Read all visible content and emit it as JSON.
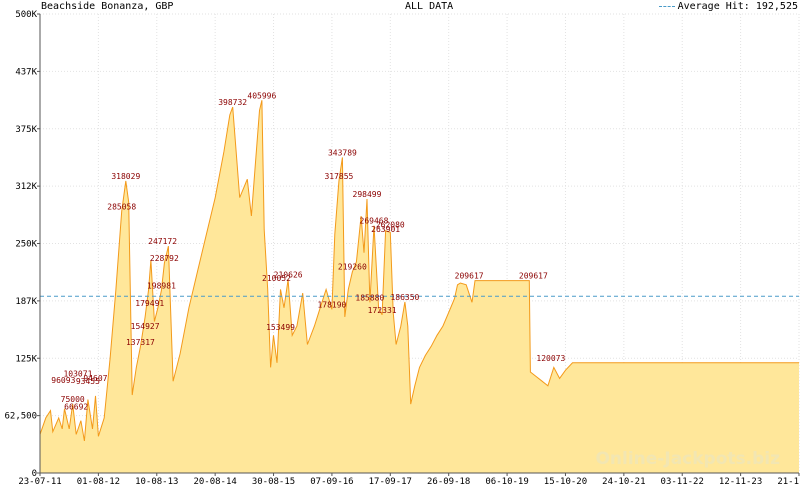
{
  "chart_data": {
    "type": "area",
    "title": "Beachside Bonanza, GBP",
    "subtitle": "ALL DATA",
    "legend": {
      "label": "Average Hit: 192,525",
      "position": "top-right"
    },
    "average": 192525,
    "ylim": [
      0,
      500000
    ],
    "y_ticks": [
      {
        "value": 0,
        "label": "0"
      },
      {
        "value": 62500,
        "label": "62,500"
      },
      {
        "value": 125000,
        "label": "125K"
      },
      {
        "value": 187500,
        "label": "187K"
      },
      {
        "value": 250000,
        "label": "250K"
      },
      {
        "value": 312500,
        "label": "312K"
      },
      {
        "value": 375000,
        "label": "375K"
      },
      {
        "value": 437500,
        "label": "437K"
      },
      {
        "value": 500000,
        "label": "500K"
      }
    ],
    "x_ticks": [
      "23-07-11",
      "01-08-12",
      "10-08-13",
      "20-08-14",
      "30-08-15",
      "07-09-16",
      "17-09-17",
      "26-09-18",
      "06-10-19",
      "15-10-20",
      "24-10-21",
      "03-11-22",
      "12-11-23",
      "21-11-24"
    ],
    "xlim": [
      0,
      13
    ],
    "grid": true,
    "watermark": "Online-Jackpots.biz",
    "series": [
      {
        "points": [
          [
            0.0,
            42000
          ],
          [
            0.1,
            60000
          ],
          [
            0.18,
            68000
          ],
          [
            0.22,
            45000
          ],
          [
            0.32,
            60000
          ],
          [
            0.38,
            48000
          ],
          [
            0.42,
            70000
          ],
          [
            0.5,
            48000
          ],
          [
            0.56,
            75000
          ],
          [
            0.62,
            42000
          ],
          [
            0.7,
            57000
          ],
          [
            0.76,
            35000
          ],
          [
            0.82,
            80000
          ],
          [
            0.9,
            48000
          ],
          [
            0.95,
            84000
          ],
          [
            1.0,
            40000
          ],
          [
            1.1,
            60000
          ],
          [
            1.2,
            125000
          ],
          [
            1.3,
            200000
          ],
          [
            1.4,
            285058
          ],
          [
            1.47,
            318029
          ],
          [
            1.52,
            295000
          ],
          [
            1.58,
            85000
          ],
          [
            1.65,
            115000
          ],
          [
            1.72,
            137317
          ],
          [
            1.8,
            170000
          ],
          [
            1.86,
            200000
          ],
          [
            1.9,
            232000
          ],
          [
            1.96,
            165000
          ],
          [
            2.02,
            180000
          ],
          [
            2.08,
            198981
          ],
          [
            2.13,
            228792
          ],
          [
            2.2,
            247172
          ],
          [
            2.28,
            100000
          ],
          [
            2.4,
            130000
          ],
          [
            2.55,
            180000
          ],
          [
            2.7,
            220000
          ],
          [
            2.85,
            260000
          ],
          [
            3.0,
            300000
          ],
          [
            3.15,
            350000
          ],
          [
            3.25,
            390000
          ],
          [
            3.3,
            398732
          ],
          [
            3.42,
            300000
          ],
          [
            3.55,
            320000
          ],
          [
            3.62,
            280000
          ],
          [
            3.68,
            330000
          ],
          [
            3.76,
            395000
          ],
          [
            3.8,
            405996
          ],
          [
            3.84,
            265000
          ],
          [
            3.9,
            200000
          ],
          [
            3.95,
            115000
          ],
          [
            4.0,
            150000
          ],
          [
            4.06,
            120000
          ],
          [
            4.12,
            200000
          ],
          [
            4.18,
            180000
          ],
          [
            4.25,
            210626
          ],
          [
            4.32,
            150000
          ],
          [
            4.4,
            160000
          ],
          [
            4.5,
            196000
          ],
          [
            4.58,
            140000
          ],
          [
            4.7,
            160000
          ],
          [
            4.8,
            180000
          ],
          [
            4.9,
            200000
          ],
          [
            5.0,
            178190
          ],
          [
            5.05,
            260000
          ],
          [
            5.12,
            317855
          ],
          [
            5.18,
            343789
          ],
          [
            5.22,
            170000
          ],
          [
            5.28,
            200000
          ],
          [
            5.35,
            219260
          ],
          [
            5.42,
            230000
          ],
          [
            5.5,
            280000
          ],
          [
            5.55,
            240000
          ],
          [
            5.6,
            298499
          ],
          [
            5.65,
            185880
          ],
          [
            5.72,
            269468
          ],
          [
            5.8,
            180000
          ],
          [
            5.86,
            172331
          ],
          [
            5.92,
            263901
          ],
          [
            6.0,
            262080
          ],
          [
            6.05,
            175000
          ],
          [
            6.1,
            140000
          ],
          [
            6.18,
            160000
          ],
          [
            6.25,
            186350
          ],
          [
            6.3,
            160000
          ],
          [
            6.35,
            75000
          ],
          [
            6.42,
            95000
          ],
          [
            6.5,
            115000
          ],
          [
            6.6,
            128000
          ],
          [
            6.7,
            138000
          ],
          [
            6.8,
            150000
          ],
          [
            6.9,
            160000
          ],
          [
            7.0,
            175000
          ],
          [
            7.1,
            190000
          ],
          [
            7.15,
            205000
          ],
          [
            7.2,
            207000
          ],
          [
            7.3,
            205000
          ],
          [
            7.4,
            186000
          ],
          [
            7.45,
            209617
          ],
          [
            7.55,
            209617
          ],
          [
            8.0,
            209617
          ],
          [
            8.38,
            209617
          ],
          [
            8.4,
            110000
          ],
          [
            8.5,
            105000
          ],
          [
            8.6,
            100000
          ],
          [
            8.7,
            95000
          ],
          [
            8.8,
            115000
          ],
          [
            8.9,
            103000
          ],
          [
            9.0,
            112000
          ],
          [
            9.12,
            120073
          ],
          [
            9.4,
            120073
          ],
          [
            10.0,
            120073
          ],
          [
            11.0,
            120073
          ],
          [
            12.0,
            120073
          ],
          [
            13.0,
            120073
          ]
        ]
      }
    ],
    "annotations": [
      {
        "x": 0.56,
        "y": 75000,
        "text": "75000"
      },
      {
        "x": 0.62,
        "y": 67000,
        "text": "66692"
      },
      {
        "x": 0.4,
        "y": 96000,
        "text": "96093"
      },
      {
        "x": 0.65,
        "y": 103071,
        "text": "103071"
      },
      {
        "x": 0.82,
        "y": 95000,
        "text": "93455"
      },
      {
        "x": 0.95,
        "y": 98000,
        "text": "94607"
      },
      {
        "x": 1.4,
        "y": 285058,
        "text": "285058"
      },
      {
        "x": 1.47,
        "y": 318029,
        "text": "318029"
      },
      {
        "x": 1.72,
        "y": 137317,
        "text": "137317"
      },
      {
        "x": 1.8,
        "y": 154927,
        "text": "154927"
      },
      {
        "x": 1.88,
        "y": 179491,
        "text": "179491"
      },
      {
        "x": 2.08,
        "y": 198981,
        "text": "198981"
      },
      {
        "x": 2.13,
        "y": 228792,
        "text": "228792"
      },
      {
        "x": 2.1,
        "y": 247172,
        "text": "247172"
      },
      {
        "x": 3.3,
        "y": 398732,
        "text": "398732"
      },
      {
        "x": 3.8,
        "y": 405996,
        "text": "405996"
      },
      {
        "x": 4.05,
        "y": 207000,
        "text": "210052"
      },
      {
        "x": 4.25,
        "y": 210626,
        "text": "210626"
      },
      {
        "x": 4.12,
        "y": 153499,
        "text": "153499"
      },
      {
        "x": 5.18,
        "y": 343789,
        "text": "343789"
      },
      {
        "x": 5.12,
        "y": 317855,
        "text": "317855"
      },
      {
        "x": 5.6,
        "y": 298499,
        "text": "298499"
      },
      {
        "x": 5.72,
        "y": 269468,
        "text": "269468"
      },
      {
        "x": 6.0,
        "y": 265000,
        "text": "262080"
      },
      {
        "x": 5.92,
        "y": 260500,
        "text": "263901"
      },
      {
        "x": 5.35,
        "y": 219260,
        "text": "219260"
      },
      {
        "x": 5.0,
        "y": 178190,
        "text": "178190"
      },
      {
        "x": 5.65,
        "y": 185880,
        "text": "185880"
      },
      {
        "x": 6.25,
        "y": 186350,
        "text": "186350"
      },
      {
        "x": 5.86,
        "y": 172331,
        "text": "172331"
      },
      {
        "x": 7.35,
        "y": 209617,
        "text": "209617"
      },
      {
        "x": 8.45,
        "y": 209617,
        "text": "209617"
      },
      {
        "x": 8.75,
        "y": 120073,
        "text": "120073"
      }
    ]
  }
}
